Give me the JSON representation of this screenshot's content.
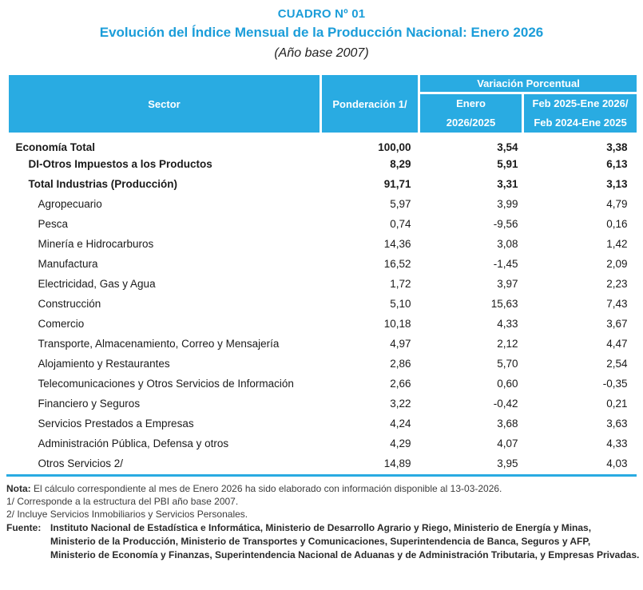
{
  "header": {
    "cuadro_label": "CUADRO Nº 01",
    "title": "Evolución del Índice Mensual de la Producción Nacional: Enero 2026",
    "base_year": "(Año base 2007)"
  },
  "colors": {
    "accent_cyan": "#29abe2",
    "title_blue": "#1b9dd9"
  },
  "table": {
    "columns": {
      "sector": "Sector",
      "ponderacion": "Ponderación 1/",
      "variacion_group": "Variación Porcentual",
      "enero_top": "Enero",
      "enero_bottom": "2026/2025",
      "feb_top": "Feb 2025-Ene 2026/",
      "feb_bottom": "Feb 2024-Ene 2025"
    },
    "rows": [
      {
        "sector": "Economía Total",
        "ponderacion": "100,00",
        "enero": "3,54",
        "feb": "3,38"
      },
      {
        "sector": "DI-Otros Impuestos a los Productos",
        "ponderacion": "8,29",
        "enero": "5,91",
        "feb": "6,13"
      },
      {
        "sector": "Total  Industrias (Producción)",
        "ponderacion": "91,71",
        "enero": "3,31",
        "feb": "3,13"
      },
      {
        "sector": "Agropecuario",
        "ponderacion": "5,97",
        "enero": "3,99",
        "feb": "4,79"
      },
      {
        "sector": "Pesca",
        "ponderacion": "0,74",
        "enero": "-9,56",
        "feb": "0,16"
      },
      {
        "sector": "Minería e Hidrocarburos",
        "ponderacion": "14,36",
        "enero": "3,08",
        "feb": "1,42"
      },
      {
        "sector": "Manufactura",
        "ponderacion": "16,52",
        "enero": "-1,45",
        "feb": "2,09"
      },
      {
        "sector": "Electricidad, Gas y Agua",
        "ponderacion": "1,72",
        "enero": "3,97",
        "feb": "2,23"
      },
      {
        "sector": "Construcción",
        "ponderacion": "5,10",
        "enero": "15,63",
        "feb": "7,43"
      },
      {
        "sector": "Comercio",
        "ponderacion": "10,18",
        "enero": "4,33",
        "feb": "3,67"
      },
      {
        "sector": "Transporte, Almacenamiento, Correo y Mensajería",
        "ponderacion": "4,97",
        "enero": "2,12",
        "feb": "4,47"
      },
      {
        "sector": "Alojamiento y Restaurantes",
        "ponderacion": "2,86",
        "enero": "5,70",
        "feb": "2,54"
      },
      {
        "sector": "Telecomunicaciones y Otros Servicios de Información",
        "ponderacion": "2,66",
        "enero": "0,60",
        "feb": "-0,35"
      },
      {
        "sector": "Financiero y Seguros",
        "ponderacion": "3,22",
        "enero": "-0,42",
        "feb": "0,21"
      },
      {
        "sector": "Servicios Prestados a Empresas",
        "ponderacion": "4,24",
        "enero": "3,68",
        "feb": "3,63"
      },
      {
        "sector": "Administración Pública, Defensa y otros",
        "ponderacion": "4,29",
        "enero": "4,07",
        "feb": "4,33"
      },
      {
        "sector": "Otros Servicios 2/",
        "ponderacion": "14,89",
        "enero": "3,95",
        "feb": "4,03"
      }
    ]
  },
  "notes": {
    "nota_label": "Nota:",
    "nota_text": "El cálculo correspondiente al mes de Enero 2026 ha sido elaborado con información disponible al 13-03-2026.",
    "footnote_1": "1/ Corresponde a la estructura del PBI año base 2007.",
    "footnote_2": "2/ Incluye Servicios Inmobiliarios y Servicios Personales.",
    "fuente_label": "Fuente:",
    "fuente_line1": "Instituto Nacional de Estadística e Informática, Ministerio de Desarrollo Agrario y Riego, Ministerio de Energía y Minas,",
    "fuente_line2": "Ministerio de la Producción, Ministerio de Transportes y Comunicaciones, Superintendencia de Banca, Seguros y AFP,",
    "fuente_line3": "Ministerio de Economía y Finanzas, Superintendencia Nacional de Aduanas y de Administración Tributaria, y Empresas Privadas."
  }
}
